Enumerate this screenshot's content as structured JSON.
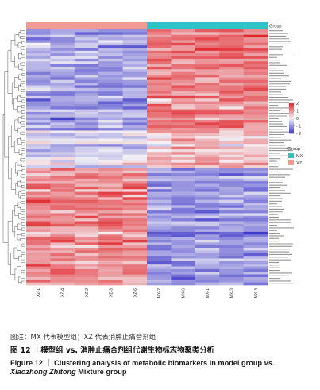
{
  "chart_data": {
    "type": "heatmap",
    "samples": [
      "XZ-1",
      "XZ-4",
      "XZ-2",
      "XZ-3",
      "XZ-6",
      "MX-2",
      "MX-6",
      "MX-1",
      "MX-3",
      "MX-4"
    ],
    "group_of_sample": [
      "XZ",
      "XZ",
      "XZ",
      "XZ",
      "XZ",
      "MX",
      "MX",
      "MX",
      "MX",
      "MX"
    ],
    "group_legend_title": "Group",
    "groups": [
      {
        "name": "MX",
        "color": "#2ec4c7"
      },
      {
        "name": "XZ",
        "color": "#f29b93"
      }
    ],
    "color_scale": {
      "min": -2,
      "max": 2,
      "ticks": [
        2,
        1,
        0,
        -1,
        -2
      ],
      "low_color": "#3d38c8",
      "mid_color": "#f4f2f6",
      "high_color": "#e0262b"
    },
    "row_count": 96,
    "row_dendrogram": true,
    "values_note": "z-scores by row; MX samples high in upper block, XZ samples high in lower block",
    "blocks": [
      {
        "rows": 38,
        "xz": -0.9,
        "mx": 1.1
      },
      {
        "rows": 14,
        "xz": -0.3,
        "mx": 0.5
      },
      {
        "rows": 16,
        "xz": 1.0,
        "mx": -0.9
      },
      {
        "rows": 28,
        "xz": 0.9,
        "mx": -1.0
      }
    ]
  },
  "captions": {
    "note": "图注：MX 代表模型组；XZ 代表消肿止痛合剂组",
    "cn_label": "图 12 ｜",
    "cn_text": "模型组 vs. 消肿止痛合剂组代谢生物标志物聚类分析",
    "en_line1_a": "Figure 12 ｜ Clustering analysis of metabolic biomarkers in model group ",
    "en_vs": "vs.",
    "en_name": "Xiaozhong Zhitong",
    "en_line2_rest": " Mixture group"
  }
}
